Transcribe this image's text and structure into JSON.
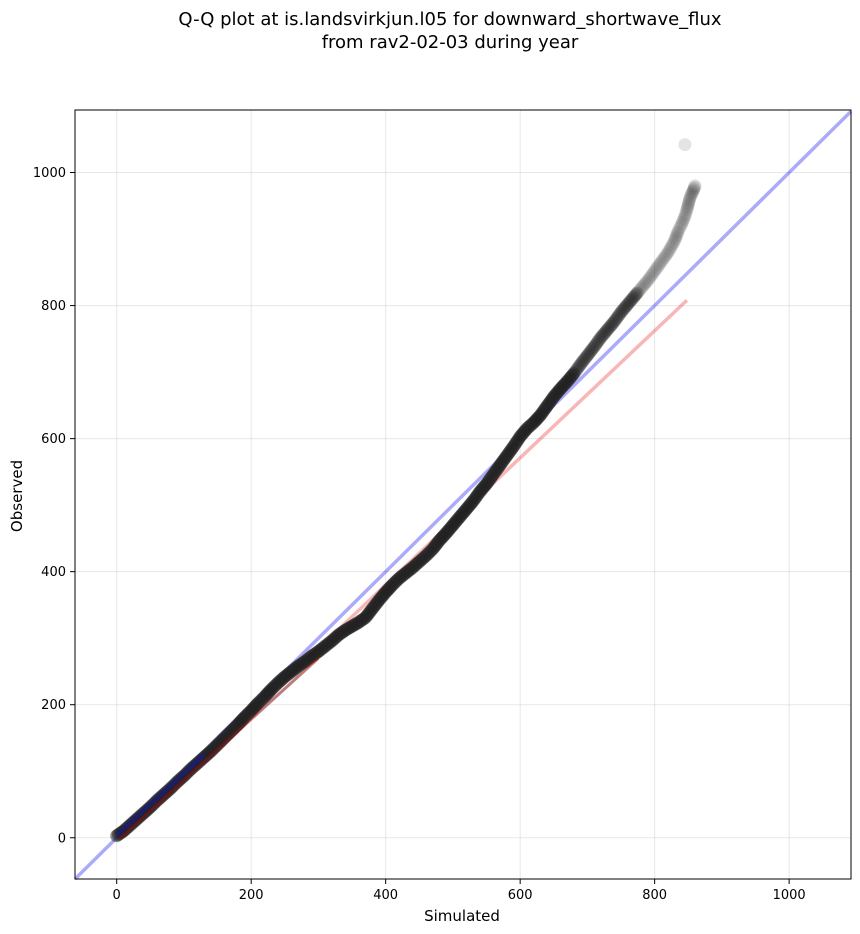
{
  "chart_data": {
    "type": "scatter",
    "title": [
      "Q-Q plot at is.landsvirkjun.l05 for downward_shortwave_flux",
      "from rav2-02-03 during year"
    ],
    "xlabel": "Simulated",
    "ylabel": "Observed",
    "xlim": [
      -62,
      1092
    ],
    "ylim": [
      -62,
      1094
    ],
    "xticks": [
      0,
      200,
      400,
      600,
      800,
      1000
    ],
    "yticks": [
      0,
      200,
      400,
      600,
      800,
      1000
    ],
    "grid": true,
    "colors": {
      "points": "#1f1f1f",
      "identity_line": "#0000ee",
      "fit_line": "#ee2222",
      "low_band": "#1b1b8f",
      "high_band": "#8b1010"
    },
    "identity_line": {
      "x": [
        -62,
        1092
      ],
      "y": [
        -62,
        1092
      ]
    },
    "fit_line": {
      "x": [
        0,
        848
      ],
      "y": [
        -2,
        808
      ]
    },
    "series": [
      {
        "x": [
          0,
          10,
          20,
          30,
          40,
          50,
          60,
          70,
          80,
          90,
          100,
          110,
          120,
          130,
          140,
          150,
          160,
          170,
          180,
          190,
          200,
          210,
          220,
          230,
          240,
          250,
          260,
          270,
          280,
          290,
          300,
          310,
          320,
          330,
          340,
          350,
          360,
          370,
          380,
          390,
          400,
          410,
          420,
          430,
          440,
          450,
          460,
          470,
          480,
          490,
          500,
          510,
          520,
          530,
          540,
          550,
          560,
          570,
          580,
          590,
          600,
          610,
          620,
          630,
          640,
          650,
          660,
          670,
          680,
          690,
          700,
          710,
          720,
          730,
          740,
          750,
          760,
          770,
          780,
          790,
          800,
          810,
          820,
          830,
          835,
          840,
          845,
          848,
          850,
          852,
          855,
          858,
          860,
          845
        ],
        "y": [
          3,
          10,
          19,
          28,
          37,
          46,
          56,
          65,
          74,
          84,
          93,
          103,
          112,
          121,
          130,
          140,
          150,
          160,
          170,
          181,
          191,
          202,
          212,
          223,
          233,
          242,
          250,
          258,
          265,
          273,
          280,
          288,
          296,
          305,
          312,
          318,
          324,
          331,
          344,
          357,
          369,
          380,
          390,
          398,
          406,
          415,
          424,
          434,
          447,
          458,
          470,
          482,
          494,
          506,
          520,
          532,
          546,
          560,
          574,
          588,
          603,
          615,
          624,
          635,
          649,
          663,
          675,
          686,
          698,
          712,
          725,
          738,
          752,
          764,
          776,
          790,
          802,
          814,
          826,
          838,
          852,
          866,
          880,
          898,
          912,
          922,
          934,
          944,
          952,
          960,
          968,
          974,
          980,
          1042
        ]
      }
    ]
  }
}
